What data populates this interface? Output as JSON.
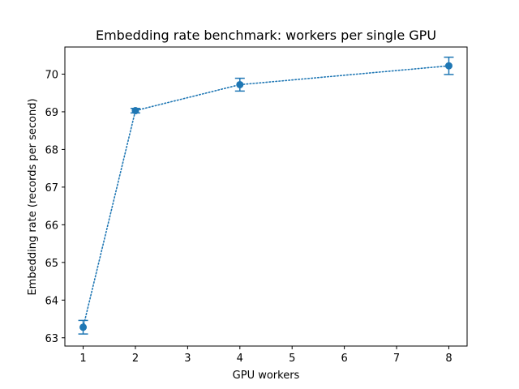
{
  "chart_data": {
    "type": "line",
    "title": "Embedding rate benchmark: workers per single GPU",
    "xlabel": "GPU workers",
    "ylabel": "Embedding rate (records per second)",
    "xlim": [
      0.65,
      8.35
    ],
    "ylim": [
      62.78,
      70.72
    ],
    "x_ticks": [
      1,
      2,
      3,
      4,
      5,
      6,
      7,
      8
    ],
    "y_ticks": [
      63,
      64,
      65,
      66,
      67,
      68,
      69,
      70
    ],
    "grid": false,
    "line_style": "dotted",
    "series": [
      {
        "color": "#1f77b4",
        "points": [
          {
            "x": 1,
            "y": 63.28,
            "err": 0.18
          },
          {
            "x": 2,
            "y": 69.03,
            "err": 0.06
          },
          {
            "x": 4,
            "y": 69.72,
            "err": 0.17
          },
          {
            "x": 8,
            "y": 70.22,
            "err": 0.23
          }
        ]
      }
    ]
  }
}
